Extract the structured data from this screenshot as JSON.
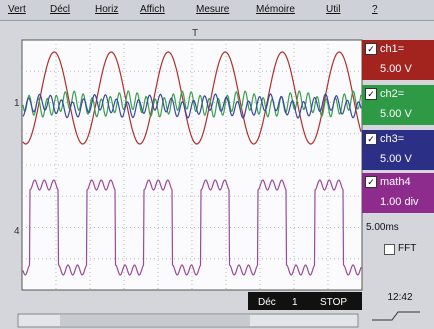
{
  "menu": {
    "items": [
      "Vert",
      "Décl",
      "Horiz",
      "Affich",
      "Mesure",
      "Mémoire",
      "Util",
      "?"
    ]
  },
  "markers": {
    "trigger": "T",
    "ch1": "1",
    "ch4": "4"
  },
  "channels": [
    {
      "label": "ch1=",
      "value": "5.00 V"
    },
    {
      "label": "ch2=",
      "value": "5.00 V"
    },
    {
      "label": "ch3=",
      "value": "5.00 V"
    },
    {
      "label": "math4",
      "value": "1.00 div"
    }
  ],
  "timebase": "5.00ms",
  "fft_label": "FFT",
  "status": {
    "mode": "Déc",
    "channel": "1",
    "state": "STOP"
  },
  "clock": "12:42"
}
